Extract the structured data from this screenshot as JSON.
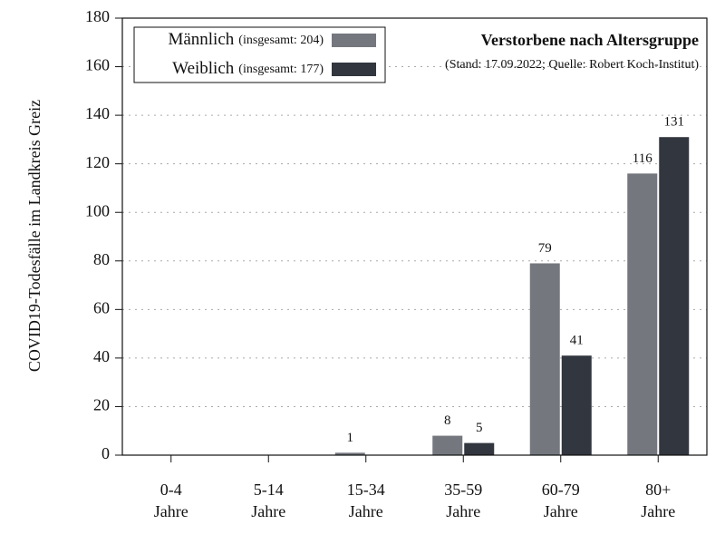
{
  "chart_data": {
    "type": "bar",
    "title": "Verstorbene nach Altersgruppe",
    "subtitle": "(Stand: 17.09.2022; Quelle: Robert Koch-Institut)",
    "y_label": "COVID19-Todesfälle im Landkreis Greiz",
    "categories": [
      "0-4\nJahre",
      "5-14\nJahre",
      "15-34\nJahre",
      "35-59\nJahre",
      "60-79\nJahre",
      "80+\nJahre"
    ],
    "series": [
      {
        "name": "Männlich",
        "note": "(insgesamt: 204)",
        "color": "#74777e",
        "values": [
          0,
          0,
          1,
          8,
          79,
          116
        ]
      },
      {
        "name": "Weiblich",
        "note": "(insgesamt: 177)",
        "color": "#32363e",
        "values": [
          0,
          0,
          0,
          5,
          41,
          131
        ]
      }
    ],
    "ylim": [
      0,
      180
    ],
    "yticks": [
      0,
      20,
      40,
      60,
      80,
      100,
      120,
      140,
      160,
      180
    ],
    "grid": true
  }
}
